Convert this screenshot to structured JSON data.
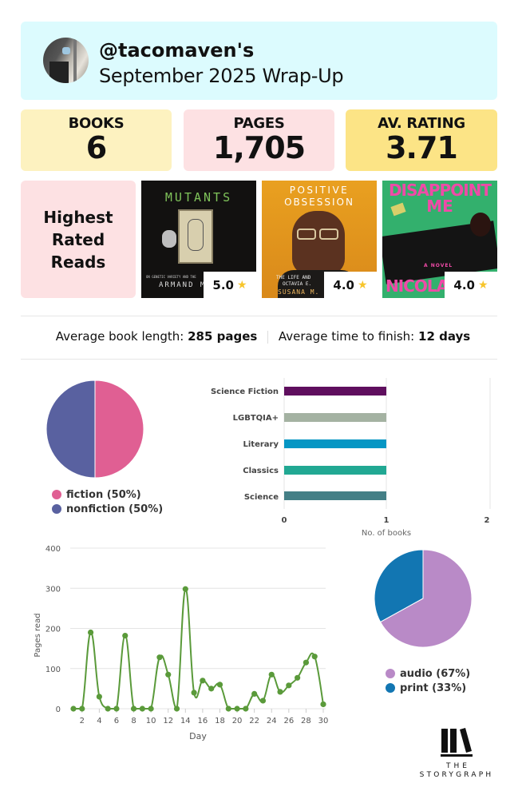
{
  "header": {
    "username": "@tacomaven's",
    "subtitle": "September 2025 Wrap-Up",
    "avatar": "user-avatar-photo"
  },
  "stats": {
    "books": {
      "label": "BOOKS",
      "value": "6",
      "color": "#fdf2c0"
    },
    "pages": {
      "label": "PAGES",
      "value": "1,705",
      "color": "#fde1e3"
    },
    "rating": {
      "label": "AV. RATING",
      "value": "3.71",
      "color": "#fce486"
    }
  },
  "highest_rated": {
    "title_line1": "Highest",
    "title_line2": "Rated",
    "title_line3": "Reads",
    "books": [
      {
        "cover_title": "MUTANTS",
        "cover_author": "ARMAND M.",
        "cover_sub": "ON GENETIC VARIETY AND THE",
        "rating": "5.0",
        "icon": "star-icon"
      },
      {
        "cover_title_1": "POSITIVE",
        "cover_title_2": "OBSESSION",
        "cover_sub": "THE LIFE AND",
        "cover_sub2": "OCTAVIA E.",
        "cover_author": "SUSANA M.",
        "rating": "4.0",
        "icon": "star-icon"
      },
      {
        "cover_title_1": "DISAPPOINT",
        "cover_title_2": "ME",
        "cover_sub": "A NOVEL",
        "cover_author": "NICOLA",
        "rating": "4.0",
        "icon": "star-icon"
      }
    ]
  },
  "averages": {
    "length_label": "Average book length:",
    "length_value": "285 pages",
    "time_label": "Average time to finish:",
    "time_value": "12 days"
  },
  "chart_data": [
    {
      "type": "pie",
      "title": "",
      "categories": [
        "fiction",
        "nonfiction"
      ],
      "values": [
        50,
        50
      ],
      "colors": [
        "#e05f93",
        "#5961a0"
      ],
      "legend": [
        "fiction (50%)",
        "nonfiction (50%)"
      ],
      "legend_position": "bottom"
    },
    {
      "type": "bar",
      "orientation": "horizontal",
      "categories": [
        "Science Fiction",
        "LGBTQIA+",
        "Literary",
        "Classics",
        "Science"
      ],
      "values": [
        1,
        1,
        1,
        1,
        1
      ],
      "colors": [
        "#5f0f5e",
        "#a4b2a2",
        "#0596c4",
        "#21a893",
        "#447f86"
      ],
      "xlabel": "No. of books",
      "ylabel": "",
      "xlim": [
        0,
        2
      ],
      "xticks": [
        "0",
        "1",
        "2"
      ],
      "grid": true
    },
    {
      "type": "line",
      "title": "",
      "xlabel": "Day",
      "ylabel": "Pages read",
      "x": [
        1,
        2,
        3,
        4,
        5,
        6,
        7,
        8,
        9,
        10,
        11,
        12,
        13,
        14,
        15,
        16,
        17,
        18,
        19,
        20,
        21,
        22,
        23,
        24,
        25,
        26,
        27,
        28,
        29,
        30
      ],
      "values": [
        0,
        0,
        190,
        30,
        0,
        0,
        182,
        0,
        0,
        0,
        128,
        85,
        0,
        298,
        40,
        70,
        50,
        60,
        0,
        0,
        0,
        37,
        20,
        85,
        42,
        58,
        77,
        115,
        130,
        11
      ],
      "xticks": [
        "2",
        "4",
        "6",
        "8",
        "10",
        "12",
        "14",
        "16",
        "18",
        "20",
        "22",
        "24",
        "26",
        "28",
        "30"
      ],
      "yticks": [
        "0",
        "100",
        "200",
        "300",
        "400"
      ],
      "ylim": [
        0,
        400
      ],
      "color": "#5a9a3a",
      "grid": true
    },
    {
      "type": "pie",
      "title": "",
      "categories": [
        "audio",
        "print"
      ],
      "values": [
        67,
        33
      ],
      "colors": [
        "#b98ac7",
        "#1276b2"
      ],
      "legend": [
        "audio (67%)",
        "print (33%)"
      ],
      "legend_position": "bottom"
    }
  ],
  "footer": {
    "logo_line1": "THE",
    "logo_line2": "STORYGRAPH",
    "logo_icon": "books-logo-icon"
  }
}
